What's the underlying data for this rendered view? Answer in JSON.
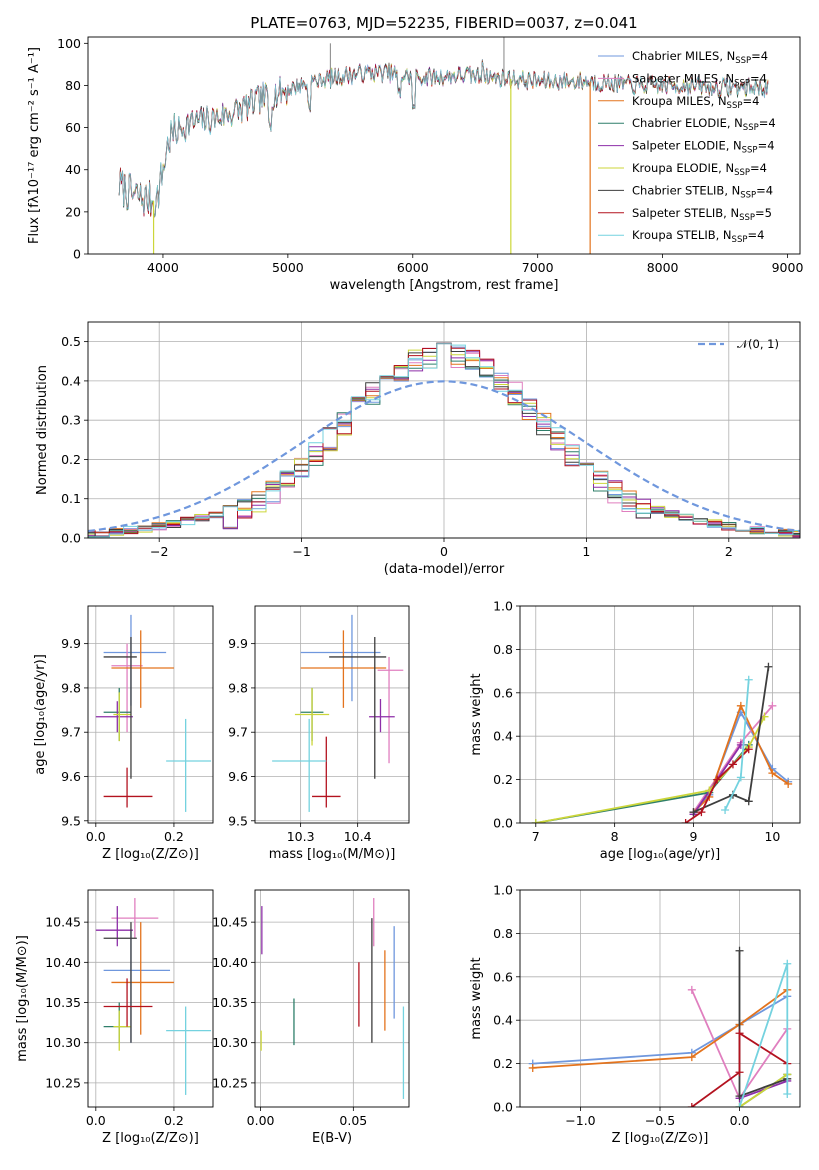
{
  "title": "PLATE=0763, MJD=52235, FIBERID=0037, z=0.041",
  "colors": [
    "#6f97dd",
    "#e07fbf",
    "#e3731d",
    "#2f7f6a",
    "#8d2ea8",
    "#ccd63a",
    "#3e3e3e",
    "#b3121f",
    "#74d2df"
  ],
  "chart_data": [
    {
      "type": "line",
      "panel": "spectrum",
      "xlabel": "wavelength [Angstrom, rest frame]",
      "ylabel": "Flux [f_λ 10^-17 erg cm^-2 s^-1 A^-1]",
      "xlim": [
        3400,
        9100
      ],
      "ylim": [
        0,
        103
      ],
      "xticks": [
        4000,
        5000,
        6000,
        7000,
        8000,
        9000
      ],
      "yticks": [
        0,
        20,
        40,
        60,
        80,
        100
      ],
      "series": [
        {
          "name": "Chabrier MILES, N",
          "sub": "SSP",
          "suffix": "=4"
        },
        {
          "name": "Salpeter MILES, N",
          "sub": "SSP",
          "suffix": "=4"
        },
        {
          "name": "Kroupa MILES, N",
          "sub": "SSP",
          "suffix": "=4"
        },
        {
          "name": "Chabrier ELODIE, N",
          "sub": "SSP",
          "suffix": "=4"
        },
        {
          "name": "Salpeter ELODIE, N",
          "sub": "SSP",
          "suffix": "=4"
        },
        {
          "name": "Kroupa ELODIE, N",
          "sub": "SSP",
          "suffix": "=4"
        },
        {
          "name": "Chabrier STELIB, N",
          "sub": "SSP",
          "suffix": "=4"
        },
        {
          "name": "Salpeter STELIB, N",
          "sub": "SSP",
          "suffix": "=5"
        },
        {
          "name": "Kroupa STELIB, N",
          "sub": "SSP",
          "suffix": "=4"
        }
      ],
      "continuum": [
        [
          3650,
          33
        ],
        [
          3750,
          28
        ],
        [
          3850,
          26
        ],
        [
          3950,
          25
        ],
        [
          4050,
          55
        ],
        [
          4200,
          62
        ],
        [
          4400,
          64
        ],
        [
          4600,
          68
        ],
        [
          4800,
          74
        ],
        [
          5000,
          78
        ],
        [
          5200,
          82
        ],
        [
          5400,
          84
        ],
        [
          5600,
          86
        ],
        [
          5800,
          86
        ],
        [
          6000,
          84
        ],
        [
          6200,
          84
        ],
        [
          6400,
          85
        ],
        [
          6600,
          84
        ],
        [
          6800,
          83
        ],
        [
          7000,
          82
        ],
        [
          7200,
          82
        ],
        [
          7400,
          82
        ],
        [
          7600,
          81
        ],
        [
          7800,
          80
        ],
        [
          8000,
          80
        ],
        [
          8200,
          80
        ],
        [
          8400,
          79
        ],
        [
          8600,
          79
        ],
        [
          8800,
          79
        ]
      ],
      "features": [
        {
          "x": 3933,
          "y": 4
        },
        {
          "x": 6010,
          "y": 70
        },
        {
          "x": 5340,
          "y": 100
        },
        {
          "x": 6730,
          "y": 103
        }
      ],
      "dropouts": [
        {
          "x": 3925,
          "series": 5
        },
        {
          "x": 6785,
          "series": 5
        },
        {
          "x": 7420,
          "series": 2
        }
      ]
    },
    {
      "type": "histogram",
      "panel": "residuals",
      "xlabel": "(data-model)/error",
      "ylabel": "Normed distribution",
      "xlim": [
        -2.5,
        2.5
      ],
      "ylim": [
        0,
        0.55
      ],
      "xticks": [
        -2,
        -1,
        0,
        1,
        2
      ],
      "yticks": [
        0.0,
        0.1,
        0.2,
        0.3,
        0.4,
        0.5
      ],
      "bin_width": 0.1,
      "gaussian_label": "𝒩(0, 1)",
      "gaussian_color": "#6f97dd"
    },
    {
      "type": "scatter",
      "panel": "Z-age",
      "xlabel": "Z [log₁₀(Z/Z⊙)]",
      "ylabel": "age  [log₁₀(age/yr)]",
      "xlim": [
        -0.02,
        0.3
      ],
      "ylim": [
        9.495,
        9.985
      ],
      "xticks": [
        0.0,
        0.2
      ],
      "yticks": [
        9.5,
        9.6,
        9.7,
        9.8,
        9.9
      ],
      "points": [
        {
          "series": 0,
          "x": 0.09,
          "y": 9.88,
          "xerr": [
            0.02,
            0.18
          ],
          "yerr": [
            9.76,
            9.965
          ]
        },
        {
          "series": 1,
          "x": 0.08,
          "y": 9.85,
          "xerr": [
            0.04,
            0.12
          ],
          "yerr": [
            9.7,
            9.9
          ]
        },
        {
          "series": 2,
          "x": 0.115,
          "y": 9.845,
          "xerr": [
            0.04,
            0.2
          ],
          "yerr": [
            9.755,
            9.93
          ]
        },
        {
          "series": 3,
          "x": 0.06,
          "y": 9.745,
          "xerr": [
            0.02,
            0.09
          ],
          "yerr": [
            9.68,
            9.8
          ]
        },
        {
          "series": 4,
          "x": 0.055,
          "y": 9.735,
          "xerr": [
            0.0,
            0.095
          ],
          "yerr": [
            9.7,
            9.77
          ]
        },
        {
          "series": 5,
          "x": 0.06,
          "y": 9.74,
          "xerr": [
            0.045,
            0.09
          ],
          "yerr": [
            9.68,
            9.79
          ]
        },
        {
          "series": 6,
          "x": 0.09,
          "y": 9.87,
          "xerr": [
            0.02,
            0.105
          ],
          "yerr": [
            9.595,
            9.915
          ]
        },
        {
          "series": 7,
          "x": 0.08,
          "y": 9.555,
          "xerr": [
            0.02,
            0.145
          ],
          "yerr": [
            9.53,
            9.62
          ]
        },
        {
          "series": 8,
          "x": 0.23,
          "y": 9.635,
          "xerr": [
            0.18,
            0.295
          ],
          "yerr": [
            9.52,
            9.73
          ]
        }
      ]
    },
    {
      "type": "scatter",
      "panel": "mass-age",
      "xlabel": "mass [log₁₀(M/M⊙)]",
      "ylabel": "",
      "xlim": [
        10.22,
        10.49
      ],
      "ylim": [
        9.495,
        9.985
      ],
      "xticks": [
        10.3,
        10.4
      ],
      "yticks": [
        9.5,
        9.6,
        9.7,
        9.8,
        9.9
      ],
      "points": [
        {
          "series": 0,
          "x": 10.39,
          "y": 9.88,
          "xerr": [
            10.3,
            10.44
          ],
          "yerr": [
            9.77,
            9.965
          ]
        },
        {
          "series": 1,
          "x": 10.455,
          "y": 9.84,
          "xerr": [
            10.435,
            10.48
          ],
          "yerr": [
            9.63,
            9.87
          ]
        },
        {
          "series": 2,
          "x": 10.375,
          "y": 9.845,
          "xerr": [
            10.3,
            10.45
          ],
          "yerr": [
            9.755,
            9.93
          ]
        },
        {
          "series": 3,
          "x": 10.32,
          "y": 9.745,
          "xerr": [
            10.3,
            10.34
          ],
          "yerr": [
            9.68,
            9.8
          ]
        },
        {
          "series": 4,
          "x": 10.44,
          "y": 9.735,
          "xerr": [
            10.42,
            10.465
          ],
          "yerr": [
            9.7,
            9.775
          ]
        },
        {
          "series": 5,
          "x": 10.32,
          "y": 9.74,
          "xerr": [
            10.29,
            10.35
          ],
          "yerr": [
            9.67,
            9.8
          ]
        },
        {
          "series": 6,
          "x": 10.43,
          "y": 9.87,
          "xerr": [
            10.35,
            10.45
          ],
          "yerr": [
            9.595,
            9.915
          ]
        },
        {
          "series": 7,
          "x": 10.345,
          "y": 9.555,
          "xerr": [
            10.32,
            10.37
          ],
          "yerr": [
            9.53,
            9.69
          ]
        },
        {
          "series": 8,
          "x": 10.315,
          "y": 9.635,
          "xerr": [
            10.25,
            10.345
          ],
          "yerr": [
            9.52,
            9.73
          ]
        }
      ]
    },
    {
      "type": "line",
      "panel": "age-weight",
      "xlabel": "age  [log₁₀(age/yr)]",
      "ylabel": "mass weight",
      "xlim": [
        6.8,
        10.35
      ],
      "ylim": [
        0.0,
        1.0
      ],
      "xticks": [
        7,
        8,
        9,
        10
      ],
      "yticks": [
        0.0,
        0.2,
        0.4,
        0.6,
        0.8,
        1.0
      ],
      "series": [
        {
          "series": 0,
          "x": [
            9.0,
            9.2,
            9.6,
            10.0,
            10.2
          ],
          "y": [
            0.05,
            0.13,
            0.51,
            0.25,
            0.19
          ]
        },
        {
          "series": 1,
          "x": [
            9.0,
            9.6,
            10.0
          ],
          "y": [
            0.05,
            0.37,
            0.54
          ]
        },
        {
          "series": 2,
          "x": [
            9.0,
            9.2,
            9.6,
            10.0,
            10.2
          ],
          "y": [
            0.05,
            0.12,
            0.54,
            0.23,
            0.18
          ]
        },
        {
          "series": 3,
          "x": [
            7.0,
            9.2,
            9.7
          ],
          "y": [
            0.0,
            0.14,
            0.36
          ]
        },
        {
          "series": 4,
          "x": [
            9.0,
            9.6
          ],
          "y": [
            0.04,
            0.36
          ]
        },
        {
          "series": 5,
          "x": [
            7.0,
            9.2,
            9.7,
            9.9
          ],
          "y": [
            0.0,
            0.15,
            0.35,
            0.49
          ]
        },
        {
          "series": 6,
          "x": [
            9.0,
            9.5,
            9.7,
            9.95
          ],
          "y": [
            0.05,
            0.13,
            0.1,
            0.72
          ]
        },
        {
          "series": 7,
          "x": [
            8.9,
            9.1,
            9.3,
            9.5,
            9.7
          ],
          "y": [
            0.0,
            0.05,
            0.2,
            0.27,
            0.34
          ]
        },
        {
          "series": 8,
          "x": [
            9.4,
            9.6,
            9.7
          ],
          "y": [
            0.06,
            0.21,
            0.66
          ]
        }
      ]
    },
    {
      "type": "scatter",
      "panel": "Z-mass",
      "xlabel": "Z [log₁₀(Z/Z⊙)]",
      "ylabel": "mass [log₁₀(M/M⊙)]",
      "xlim": [
        -0.02,
        0.3
      ],
      "ylim": [
        10.22,
        10.49
      ],
      "xticks": [
        0.0,
        0.2
      ],
      "yticks": [
        10.25,
        10.3,
        10.35,
        10.4,
        10.45
      ],
      "points": [
        {
          "series": 0,
          "x": 0.09,
          "y": 10.39,
          "xerr": [
            0.02,
            0.19
          ],
          "yerr": [
            10.3,
            10.44
          ]
        },
        {
          "series": 1,
          "x": 0.1,
          "y": 10.455,
          "xerr": [
            0.04,
            0.16
          ],
          "yerr": [
            10.43,
            10.48
          ]
        },
        {
          "series": 2,
          "x": 0.115,
          "y": 10.375,
          "xerr": [
            0.04,
            0.2
          ],
          "yerr": [
            10.31,
            10.45
          ]
        },
        {
          "series": 3,
          "x": 0.06,
          "y": 10.32,
          "xerr": [
            0.02,
            0.09
          ],
          "yerr": [
            10.3,
            10.35
          ]
        },
        {
          "series": 4,
          "x": 0.055,
          "y": 10.44,
          "xerr": [
            0.0,
            0.095
          ],
          "yerr": [
            10.42,
            10.47
          ]
        },
        {
          "series": 5,
          "x": 0.06,
          "y": 10.32,
          "xerr": [
            0.045,
            0.09
          ],
          "yerr": [
            10.29,
            10.34
          ]
        },
        {
          "series": 6,
          "x": 0.09,
          "y": 10.43,
          "xerr": [
            0.02,
            0.105
          ],
          "yerr": [
            10.3,
            10.45
          ]
        },
        {
          "series": 7,
          "x": 0.08,
          "y": 10.345,
          "xerr": [
            0.02,
            0.145
          ],
          "yerr": [
            10.32,
            10.38
          ]
        },
        {
          "series": 8,
          "x": 0.23,
          "y": 10.315,
          "xerr": [
            0.18,
            0.295
          ],
          "yerr": [
            10.235,
            10.345
          ]
        }
      ]
    },
    {
      "type": "scatter",
      "panel": "EBV-mass",
      "xlabel": "E(B-V)",
      "ylabel": "",
      "xlim": [
        -0.003,
        0.08
      ],
      "ylim": [
        10.22,
        10.49
      ],
      "xticks": [
        0.0,
        0.05
      ],
      "yticks": [
        10.25,
        10.3,
        10.35,
        10.4,
        10.45
      ],
      "points": [
        {
          "series": 0,
          "x": 0.072,
          "y": 10.39,
          "yerr": [
            10.33,
            10.445
          ]
        },
        {
          "series": 1,
          "x": 0.061,
          "y": 10.45,
          "yerr": [
            10.42,
            10.48
          ]
        },
        {
          "series": 2,
          "x": 0.067,
          "y": 10.365,
          "yerr": [
            10.315,
            10.415
          ]
        },
        {
          "series": 3,
          "x": 0.018,
          "y": 10.32,
          "yerr": [
            10.297,
            10.355
          ]
        },
        {
          "series": 4,
          "x": 0.0007,
          "y": 10.445,
          "yerr": [
            10.41,
            10.47
          ]
        },
        {
          "series": 5,
          "x": 0.0003,
          "y": 10.3,
          "yerr": [
            10.29,
            10.315
          ]
        },
        {
          "series": 6,
          "x": 0.06,
          "y": 10.41,
          "yerr": [
            10.3,
            10.455
          ]
        },
        {
          "series": 7,
          "x": 0.053,
          "y": 10.36,
          "yerr": [
            10.32,
            10.4
          ]
        },
        {
          "series": 8,
          "x": 0.077,
          "y": 10.3,
          "yerr": [
            10.23,
            10.345
          ]
        }
      ]
    },
    {
      "type": "line",
      "panel": "Z-weight",
      "xlabel": "Z [log₁₀(Z/Z⊙)]",
      "ylabel": "mass weight",
      "xlim": [
        -1.38,
        0.38
      ],
      "ylim": [
        0.0,
        1.0
      ],
      "xticks": [
        -1.0,
        -0.5,
        0.0
      ],
      "yticks": [
        0.0,
        0.2,
        0.4,
        0.6,
        0.8,
        1.0
      ],
      "series": [
        {
          "series": 0,
          "x": [
            -1.3,
            -0.3,
            0.0,
            0.3
          ],
          "y": [
            0.2,
            0.25,
            0.38,
            0.51
          ]
        },
        {
          "series": 1,
          "x": [
            -0.3,
            0.0,
            0.3
          ],
          "y": [
            0.54,
            0.04,
            0.36
          ]
        },
        {
          "series": 2,
          "x": [
            -1.3,
            -0.3,
            0.0,
            0.3
          ],
          "y": [
            0.18,
            0.23,
            0.38,
            0.54
          ]
        },
        {
          "series": 3,
          "x": [
            0.0,
            0.3
          ],
          "y": [
            0.0,
            0.15
          ]
        },
        {
          "series": 4,
          "x": [
            0.0,
            0.3
          ],
          "y": [
            0.04,
            0.12
          ]
        },
        {
          "series": 5,
          "x": [
            0.0,
            0.3
          ],
          "y": [
            0.0,
            0.15
          ]
        },
        {
          "series": 6,
          "x": [
            0.0,
            0.0,
            0.3
          ],
          "y": [
            0.72,
            0.05,
            0.13
          ]
        },
        {
          "series": 7,
          "x": [
            -0.3,
            0.0,
            0.0,
            0.3
          ],
          "y": [
            0.0,
            0.16,
            0.34,
            0.2
          ]
        },
        {
          "series": 8,
          "x": [
            0.0,
            0.3,
            0.3
          ],
          "y": [
            0.0,
            0.66,
            0.06
          ]
        }
      ]
    }
  ]
}
